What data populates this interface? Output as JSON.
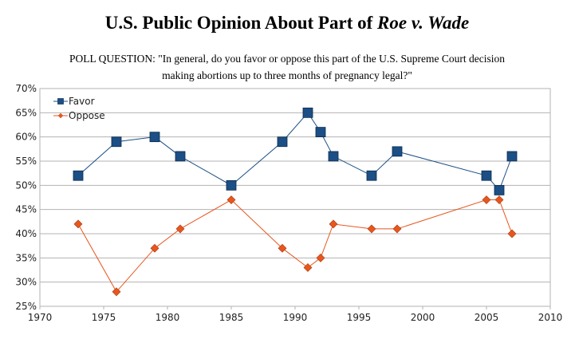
{
  "chart_data": {
    "type": "line",
    "title": "U.S. Public Opinion About Part of",
    "title_emphasis": "Roe v. Wade",
    "subtitle": [
      "POLL QUESTION: \"In general, do you favor or oppose this part of the U.S. Supreme Court decision",
      "making abortions up to three months of pregnancy legal?\""
    ],
    "x": [
      1973,
      1976,
      1979,
      1981,
      1985,
      1989,
      1991,
      1992,
      1993,
      1996,
      1998,
      2005,
      2006,
      2007
    ],
    "series": [
      {
        "name": "Favor",
        "color": "#1b4f85",
        "marker": "square",
        "values": [
          52,
          59,
          60,
          56,
          50,
          59,
          65,
          61,
          56,
          52,
          57,
          52,
          49,
          56
        ]
      },
      {
        "name": "Oppose",
        "color": "#e8561d",
        "marker": "diamond",
        "values": [
          42,
          28,
          37,
          41,
          47,
          37,
          33,
          35,
          42,
          41,
          41,
          47,
          47,
          40
        ]
      }
    ],
    "xlim": [
      1970,
      2010
    ],
    "xticks": [
      1970,
      1975,
      1980,
      1985,
      1990,
      1995,
      2000,
      2005,
      2010
    ],
    "ylim": [
      25,
      70
    ],
    "yticks": [
      {
        "value": 25,
        "label": "25%"
      },
      {
        "value": 30,
        "label": "30%"
      },
      {
        "value": 35,
        "label": "35%"
      },
      {
        "value": 40,
        "label": "40%"
      },
      {
        "value": 45,
        "label": "45%"
      },
      {
        "value": 50,
        "label": "50%"
      },
      {
        "value": 55,
        "label": "55%"
      },
      {
        "value": 60,
        "label": "60%"
      },
      {
        "value": 65,
        "label": "65%"
      },
      {
        "value": 70,
        "label": "70%"
      }
    ],
    "grid": true,
    "legend": "upper left"
  }
}
